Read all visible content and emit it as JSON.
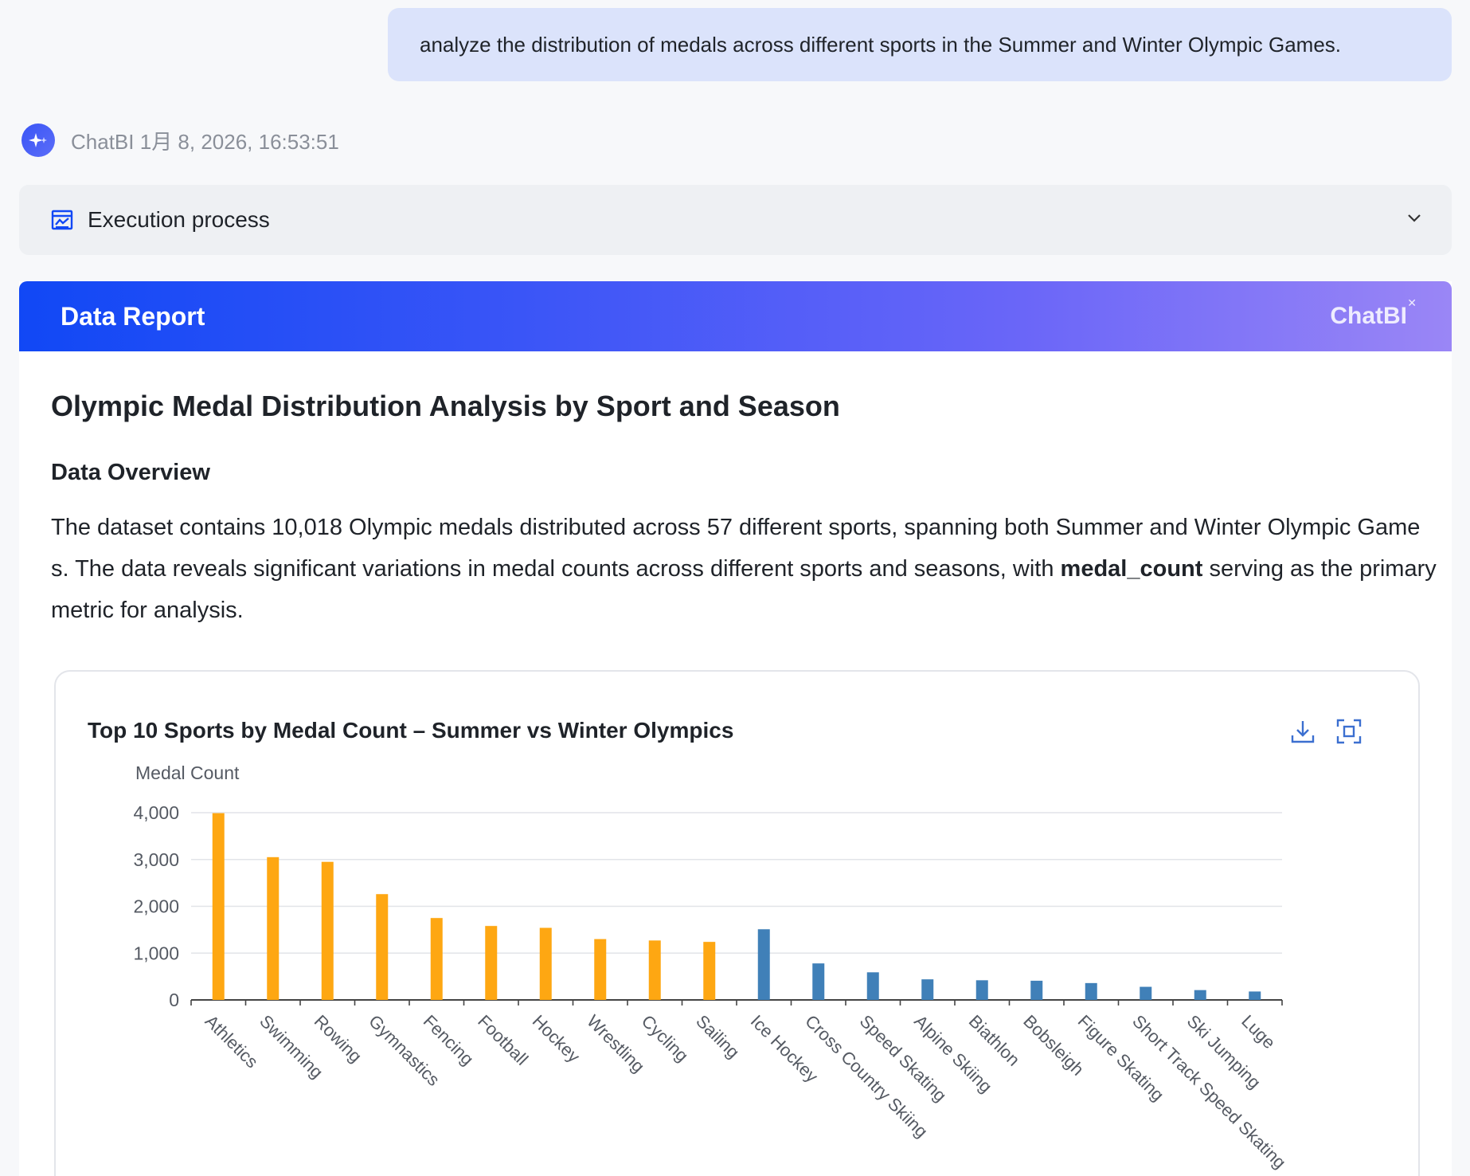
{
  "user_message": "analyze the distribution of medals across different sports in the Summer and Winter Olympic Games.",
  "bot": {
    "name": "ChatBI",
    "timestamp": "1月 8, 2026, 16:53:51"
  },
  "execution": {
    "label": "Execution process"
  },
  "report": {
    "header_title": "Data Report",
    "brand": "ChatBI",
    "title": "Olympic Medal Distribution Analysis by Sport and Season",
    "section_title": "Data Overview",
    "paragraph_before": "The dataset contains 10,018 Olympic medals distributed across 57 different sports, spanning both Summer and Winter Olympic Games. The data reveals significant variations in medal counts across different sports and seasons, with ",
    "paragraph_bold": "medal_count",
    "paragraph_after": " serving as the primary metric for analysis."
  },
  "colors": {
    "summer": "#fea712",
    "winter": "#4080b8",
    "accent": "#1148f5"
  },
  "chart_data": {
    "type": "bar",
    "title": "Top 10 Sports by Medal Count – Summer vs Winter Olympics",
    "ylabel": "Medal Count",
    "xlabel": "",
    "ylim": [
      0,
      4000
    ],
    "yticks": [
      0,
      1000,
      2000,
      3000,
      4000
    ],
    "ytick_labels": [
      "0",
      "1,000",
      "2,000",
      "3,000",
      "4,000"
    ],
    "categories": [
      "Athletics",
      "Swimming",
      "Rowing",
      "Gymnastics",
      "Fencing",
      "Football",
      "Hockey",
      "Wrestling",
      "Cycling",
      "Sailing",
      "Ice Hockey",
      "Cross Country Skiing",
      "Speed Skating",
      "Alpine Skiing",
      "Biathlon",
      "Bobsleigh",
      "Figure Skating",
      "Short Track Speed Skating",
      "Ski Jumping",
      "Luge"
    ],
    "series": [
      {
        "name": "Summer",
        "values": [
          3990,
          3050,
          2950,
          2260,
          1750,
          1580,
          1540,
          1300,
          1270,
          1240,
          null,
          null,
          null,
          null,
          null,
          null,
          null,
          null,
          null,
          null
        ]
      },
      {
        "name": "Winter",
        "values": [
          null,
          null,
          null,
          null,
          null,
          null,
          null,
          null,
          null,
          null,
          1510,
          780,
          590,
          440,
          420,
          410,
          360,
          280,
          210,
          180
        ]
      }
    ],
    "grid": true
  }
}
